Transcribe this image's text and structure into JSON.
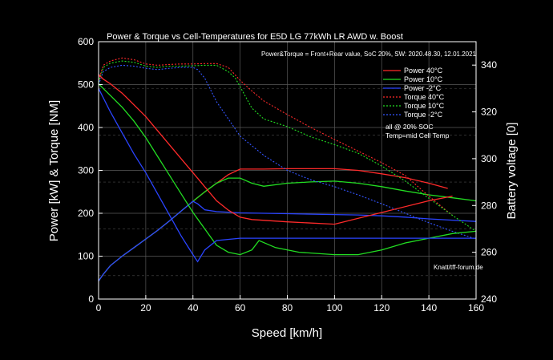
{
  "chart_data": {
    "type": "line",
    "title": "Power & Torque vs Cell-Temperatures for E5D LG 77kWh LR AWD w. Boost",
    "subtitle": "Power&Torque = Front+Rear value, SoC 20%, SW: 2020.48.30, 12.01.2021",
    "xlabel": "Speed [km/h]",
    "ylabel": "Power [kW] & Torque [NM]",
    "y2label": "Battery voltage [0]",
    "xlim": [
      0,
      160
    ],
    "ylim": [
      0,
      600
    ],
    "y2lim": [
      240,
      350
    ],
    "x_ticks": [
      "0",
      "20",
      "40",
      "60",
      "80",
      "100",
      "120",
      "140",
      "160"
    ],
    "y_ticks": [
      "0",
      "100",
      "200",
      "300",
      "400",
      "500",
      "600"
    ],
    "y2_ticks": [
      "240",
      "260",
      "280",
      "300",
      "320",
      "340"
    ],
    "grid": true,
    "legend_position": "top-right",
    "legend_notes": [
      "all @ 20% SOC",
      "Temp=mid Cell Temp"
    ],
    "credit": "Knatt/tff-forum.de",
    "series": [
      {
        "name": "Power 40°C",
        "color": "#ff2a2a",
        "style": "solid",
        "x": [
          0,
          2,
          5,
          10,
          15,
          20,
          25,
          30,
          35,
          40,
          45,
          50,
          55,
          60,
          70,
          80,
          90,
          100,
          110,
          120,
          130,
          140,
          148
        ],
        "y": [
          42,
          58,
          78,
          100,
          120,
          140,
          160,
          182,
          205,
          228,
          250,
          270,
          290,
          303,
          303,
          304,
          304,
          304,
          300,
          292,
          283,
          270,
          258
        ]
      },
      {
        "name": "Power 10°C",
        "color": "#22dd22",
        "style": "solid",
        "x": [
          0,
          2,
          5,
          10,
          15,
          20,
          25,
          30,
          35,
          40,
          45,
          50,
          55,
          60,
          65,
          70,
          80,
          90,
          100,
          110,
          120,
          130,
          140,
          150,
          160
        ],
        "y": [
          42,
          58,
          78,
          100,
          120,
          140,
          160,
          182,
          205,
          228,
          250,
          270,
          282,
          282,
          270,
          263,
          270,
          273,
          275,
          270,
          262,
          252,
          243,
          236,
          229
        ]
      },
      {
        "name": "Power -2°C",
        "color": "#2a44ff",
        "style": "solid",
        "x": [
          0,
          2,
          5,
          10,
          15,
          20,
          25,
          30,
          35,
          40,
          42,
          45,
          50,
          60,
          70,
          80,
          90,
          100,
          110,
          120,
          130,
          140,
          150,
          160
        ],
        "y": [
          42,
          58,
          78,
          100,
          120,
          140,
          160,
          182,
          205,
          228,
          222,
          208,
          204,
          201,
          200,
          199,
          198,
          197,
          196,
          194,
          191,
          187,
          184,
          181
        ]
      },
      {
        "name": "Torque 40°C",
        "color": "#ff2a2a",
        "style": "dashed",
        "x": [
          0,
          2,
          5,
          10,
          15,
          20,
          25,
          30,
          35,
          40,
          45,
          50,
          55,
          60,
          65,
          70,
          80,
          90,
          100,
          110,
          120,
          130,
          140,
          150
        ],
        "y": [
          510,
          545,
          555,
          562,
          558,
          548,
          545,
          547,
          548,
          548,
          549,
          549,
          540,
          510,
          485,
          462,
          430,
          400,
          372,
          345,
          318,
          288,
          240,
          195
        ]
      },
      {
        "name": "Torque 10°C",
        "color": "#22dd22",
        "style": "dashed",
        "x": [
          0,
          2,
          5,
          10,
          15,
          20,
          25,
          30,
          35,
          40,
          45,
          50,
          55,
          58,
          62,
          65,
          70,
          80,
          90,
          100,
          110,
          120,
          130,
          140,
          150,
          160
        ],
        "y": [
          505,
          540,
          550,
          555,
          552,
          543,
          540,
          543,
          543,
          544,
          545,
          545,
          530,
          515,
          475,
          445,
          420,
          402,
          378,
          360,
          340,
          310,
          275,
          235,
          195,
          158
        ]
      },
      {
        "name": "Torque -2°C",
        "color": "#3355ff",
        "style": "dashed",
        "x": [
          0,
          2,
          5,
          10,
          15,
          20,
          25,
          30,
          35,
          40,
          42,
          45,
          50,
          55,
          60,
          70,
          80,
          90,
          100,
          110,
          120,
          130,
          140,
          150,
          160
        ],
        "y": [
          500,
          530,
          540,
          545,
          543,
          538,
          535,
          538,
          540,
          540,
          535,
          515,
          460,
          420,
          380,
          335,
          300,
          278,
          262,
          243,
          222,
          200,
          178,
          158,
          140
        ]
      },
      {
        "name": "",
        "color": "#ff2a2a",
        "style": "solid",
        "axis": "y2",
        "x": [
          0,
          2,
          5,
          10,
          15,
          20,
          25,
          30,
          35,
          40,
          45,
          50,
          55,
          60,
          65,
          80,
          100,
          120,
          140,
          150
        ],
        "y": [
          336,
          334,
          332,
          328,
          323,
          318,
          312,
          306,
          300,
          294,
          288,
          282,
          278,
          275,
          274,
          273,
          272,
          277,
          282,
          284
        ]
      },
      {
        "name": "",
        "color": "#22dd22",
        "style": "solid",
        "axis": "y2",
        "x": [
          0,
          2,
          5,
          10,
          15,
          20,
          25,
          30,
          35,
          40,
          45,
          50,
          55,
          60,
          65,
          68,
          75,
          85,
          100,
          110,
          120,
          130,
          140,
          150,
          160
        ],
        "y": [
          332,
          330,
          327,
          322,
          316,
          309,
          301,
          293,
          285,
          277,
          270,
          263,
          260,
          259,
          261,
          265,
          262,
          260,
          259,
          259,
          261,
          264,
          266,
          268,
          269
        ]
      },
      {
        "name": "",
        "color": "#2a44ff",
        "style": "solid",
        "axis": "y2",
        "x": [
          0,
          2,
          5,
          10,
          15,
          20,
          25,
          30,
          35,
          40,
          42,
          45,
          50,
          60,
          80,
          100,
          120,
          140,
          160
        ],
        "y": [
          330,
          326,
          320,
          311,
          302,
          294,
          285,
          276,
          267,
          259,
          256,
          261,
          265,
          266,
          266,
          266,
          266,
          266,
          266
        ]
      }
    ]
  }
}
